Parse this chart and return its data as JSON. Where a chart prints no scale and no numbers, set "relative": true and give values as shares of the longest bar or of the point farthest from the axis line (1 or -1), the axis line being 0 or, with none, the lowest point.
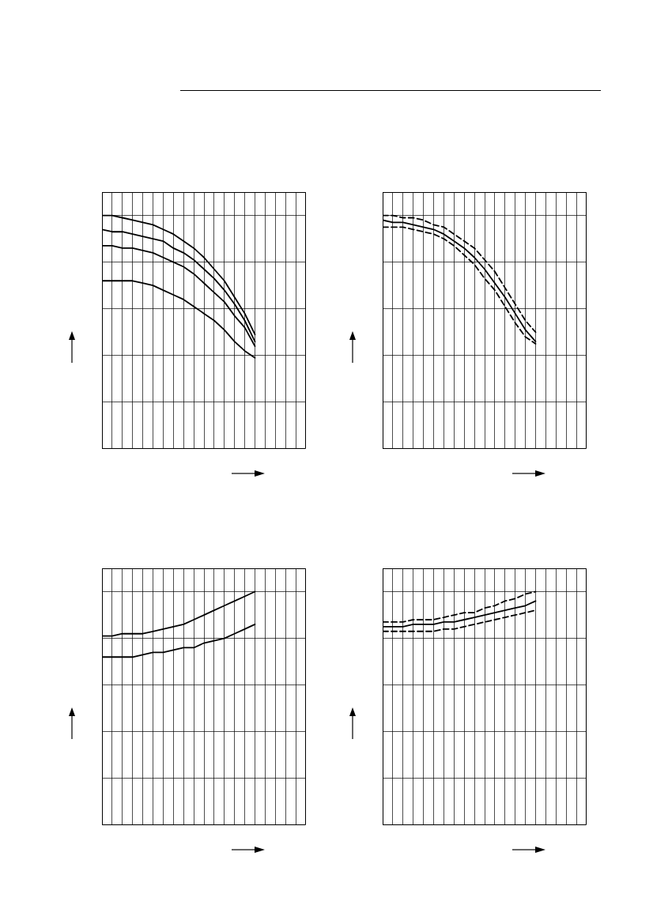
{
  "chart_data": [
    {
      "type": "line",
      "relative": true,
      "grid": true,
      "tick_labels": false,
      "marker": "none",
      "line_style": "solid",
      "categories": [
        null,
        null,
        null,
        null,
        null,
        null,
        null,
        null,
        null,
        null,
        null,
        null,
        null,
        null,
        null,
        null,
        null,
        null,
        null,
        null,
        null
      ],
      "series": [
        {
          "color": "#000000",
          "values": [
            1.0,
            1.0,
            0.99,
            0.98,
            0.97,
            0.96,
            0.94,
            0.92,
            0.89,
            0.86,
            0.82,
            0.77,
            0.72,
            0.65,
            0.58,
            0.49,
            null,
            null,
            null,
            null,
            null
          ]
        },
        {
          "color": "#000000",
          "values": [
            0.94,
            0.93,
            0.93,
            0.92,
            0.91,
            0.9,
            0.89,
            0.86,
            0.84,
            0.81,
            0.77,
            0.73,
            0.68,
            0.62,
            0.55,
            0.46,
            null,
            null,
            null,
            null,
            null
          ]
        },
        {
          "color": "#000000",
          "values": [
            0.87,
            0.87,
            0.86,
            0.86,
            0.85,
            0.84,
            0.82,
            0.8,
            0.78,
            0.75,
            0.71,
            0.67,
            0.63,
            0.57,
            0.52,
            0.44,
            null,
            null,
            null,
            null,
            null
          ]
        },
        {
          "color": "#000000",
          "values": [
            0.72,
            0.72,
            0.72,
            0.72,
            0.71,
            0.7,
            0.68,
            0.66,
            0.64,
            0.61,
            0.58,
            0.55,
            0.51,
            0.46,
            0.42,
            0.39,
            null,
            null,
            null,
            null,
            null
          ]
        }
      ]
    },
    {
      "type": "line",
      "relative": true,
      "grid": true,
      "tick_labels": false,
      "marker": "none",
      "categories": [
        null,
        null,
        null,
        null,
        null,
        null,
        null,
        null,
        null,
        null,
        null,
        null,
        null,
        null,
        null,
        null,
        null,
        null,
        null,
        null,
        null
      ],
      "series": [
        {
          "color": "#000000",
          "line_style": "dashed",
          "values": [
            1.0,
            1.0,
            0.99,
            0.99,
            0.98,
            0.96,
            0.95,
            0.92,
            0.89,
            0.86,
            0.81,
            0.76,
            0.69,
            0.62,
            0.55,
            0.5,
            null,
            null,
            null,
            null,
            null
          ]
        },
        {
          "color": "#000000",
          "line_style": "solid",
          "values": [
            0.98,
            0.97,
            0.97,
            0.96,
            0.95,
            0.94,
            0.92,
            0.89,
            0.86,
            0.82,
            0.77,
            0.71,
            0.65,
            0.58,
            0.51,
            0.46,
            null,
            null,
            null,
            null,
            null
          ]
        },
        {
          "color": "#000000",
          "line_style": "dashed",
          "values": [
            0.95,
            0.95,
            0.95,
            0.94,
            0.93,
            0.92,
            0.9,
            0.87,
            0.83,
            0.79,
            0.73,
            0.68,
            0.61,
            0.54,
            0.48,
            0.45,
            null,
            null,
            null,
            null,
            null
          ]
        }
      ]
    },
    {
      "type": "line",
      "relative": true,
      "grid": true,
      "tick_labels": false,
      "marker": "none",
      "line_style": "solid",
      "categories": [
        null,
        null,
        null,
        null,
        null,
        null,
        null,
        null,
        null,
        null,
        null,
        null,
        null,
        null,
        null,
        null,
        null,
        null,
        null,
        null,
        null
      ],
      "series": [
        {
          "color": "#000000",
          "values": [
            0.81,
            0.81,
            0.82,
            0.82,
            0.82,
            0.83,
            0.84,
            0.85,
            0.86,
            0.88,
            0.9,
            0.92,
            0.94,
            0.96,
            0.98,
            1.0,
            null,
            null,
            null,
            null,
            null
          ]
        },
        {
          "color": "#000000",
          "values": [
            0.72,
            0.72,
            0.72,
            0.72,
            0.73,
            0.74,
            0.74,
            0.75,
            0.76,
            0.76,
            0.78,
            0.79,
            0.8,
            0.82,
            0.84,
            0.86,
            null,
            null,
            null,
            null,
            null
          ]
        }
      ]
    },
    {
      "type": "line",
      "relative": true,
      "grid": true,
      "tick_labels": false,
      "marker": "none",
      "categories": [
        null,
        null,
        null,
        null,
        null,
        null,
        null,
        null,
        null,
        null,
        null,
        null,
        null,
        null,
        null,
        null,
        null,
        null,
        null,
        null,
        null
      ],
      "series": [
        {
          "color": "#000000",
          "line_style": "dashed",
          "values": [
            0.87,
            0.87,
            0.87,
            0.88,
            0.88,
            0.88,
            0.89,
            0.9,
            0.91,
            0.91,
            0.93,
            0.94,
            0.96,
            0.97,
            0.99,
            1.0,
            null,
            null,
            null,
            null,
            null
          ]
        },
        {
          "color": "#000000",
          "line_style": "solid",
          "values": [
            0.85,
            0.85,
            0.85,
            0.86,
            0.86,
            0.86,
            0.87,
            0.87,
            0.88,
            0.89,
            0.9,
            0.91,
            0.92,
            0.93,
            0.94,
            0.96,
            null,
            null,
            null,
            null,
            null
          ]
        },
        {
          "color": "#000000",
          "line_style": "dashed",
          "values": [
            0.83,
            0.83,
            0.83,
            0.83,
            0.83,
            0.83,
            0.84,
            0.84,
            0.85,
            0.86,
            0.87,
            0.88,
            0.89,
            0.9,
            0.91,
            0.92,
            null,
            null,
            null,
            null,
            null
          ]
        }
      ]
    }
  ]
}
